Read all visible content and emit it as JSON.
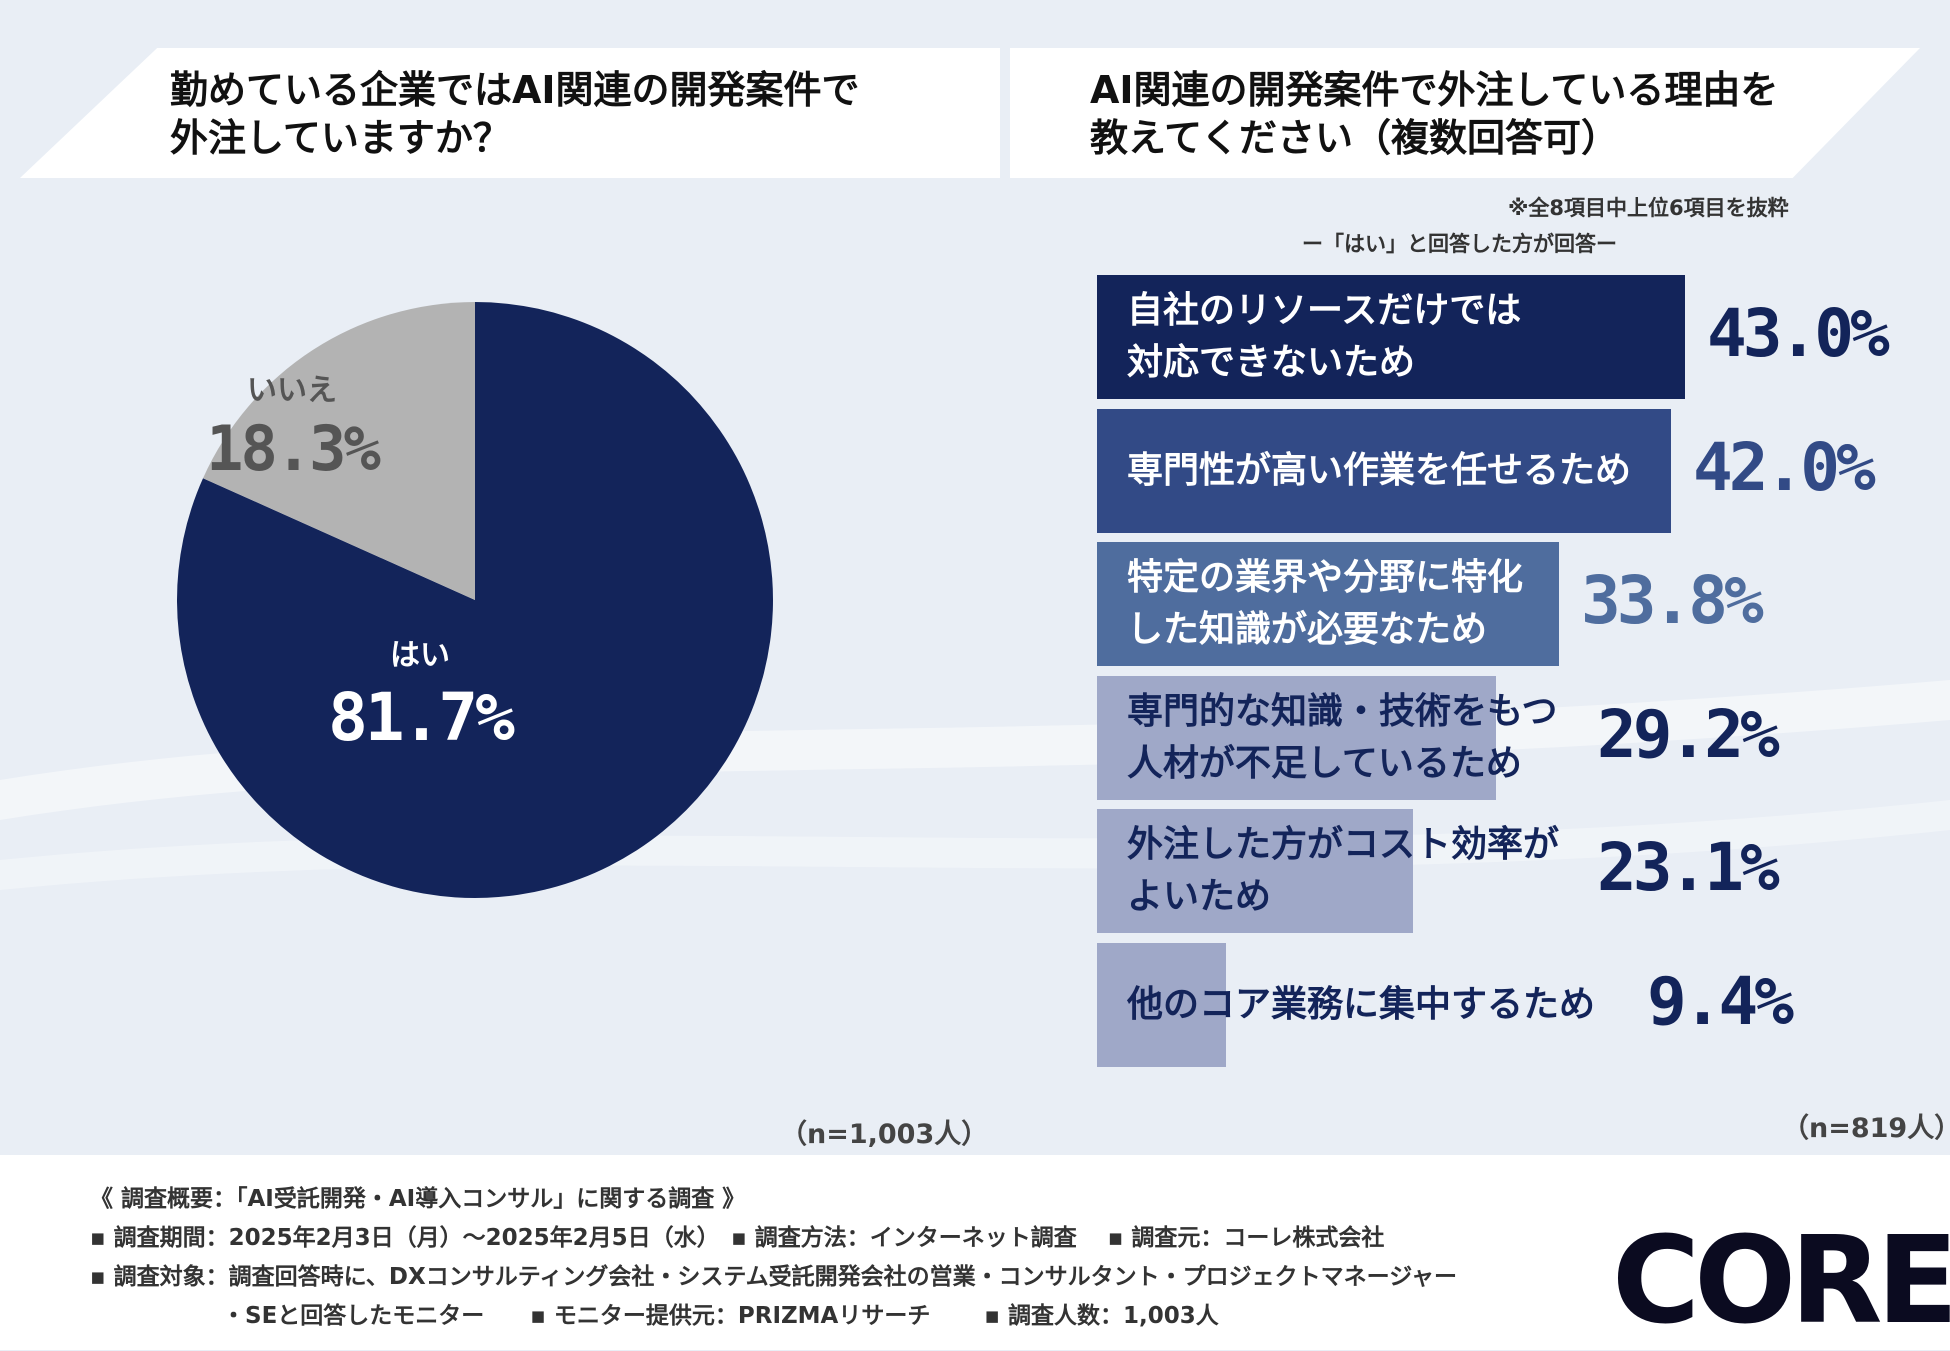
{
  "left_question": {
    "line1": "勤めている企業ではAI関連の開発案件で",
    "line2": "外注していますか？"
  },
  "right_question": {
    "line1": "AI関連の開発案件で外注している理由を",
    "line2": "教えてください（複数回答可）",
    "note": "※全8項目中上位6項目を抜粋",
    "subnote": "ー「はい」と回答した方が回答ー"
  },
  "chart_data": [
    {
      "type": "pie",
      "title": "勤めている企業ではAI関連の開発案件で外注していますか？",
      "slices": [
        {
          "label": "はい",
          "value": 81.7,
          "value_label": "81.7%",
          "color": "#13245a",
          "text_color": "#ffffff"
        },
        {
          "label": "いいえ",
          "value": 18.3,
          "value_label": "18.3%",
          "color": "#b3b3b3",
          "text_color": "#555555"
        }
      ],
      "n": "（n=1,003人）"
    },
    {
      "type": "bar",
      "orientation": "horizontal",
      "title": "AI関連の開発案件で外注している理由を教えてください（複数回答可）",
      "xlim": [
        0,
        43
      ],
      "bars": [
        {
          "line1": "自社のリソースだけでは",
          "line2": "対応できないため",
          "value": 43.0,
          "value_label": "43.0%",
          "color": "#13245a",
          "text_color": "#ffffff",
          "value_color": "#13245a"
        },
        {
          "line1": "専門性が高い作業を任せるため",
          "line2": "",
          "value": 42.0,
          "value_label": "42.0%",
          "color": "#324a86",
          "text_color": "#ffffff",
          "value_color": "#324a86"
        },
        {
          "line1": "特定の業界や分野に特化",
          "line2": "した知識が必要なため",
          "value": 33.8,
          "value_label": "33.8%",
          "color": "#4f6d9e",
          "text_color": "#ffffff",
          "value_color": "#4f6d9e"
        },
        {
          "line1": "専門的な知識・技術をもつ",
          "line2": "人材が不足しているため",
          "value": 29.2,
          "value_label": "29.2%",
          "color": "#9fa8c8",
          "text_color": "#13245a",
          "value_color": "#13245a"
        },
        {
          "line1": "外注した方がコスト効率が",
          "line2": "よいため",
          "value": 23.1,
          "value_label": "23.1%",
          "color": "#9fa8c8",
          "text_color": "#13245a",
          "value_color": "#13245a"
        },
        {
          "line1": "他のコア業務に集中するため",
          "line2": "",
          "value": 9.4,
          "value_label": "9.4%",
          "color": "#9fa8c8",
          "text_color": "#13245a",
          "value_color": "#13245a"
        }
      ],
      "n": "（n=819人）"
    }
  ],
  "footer": {
    "title": "《 調査概要：「AI受託開発・AI導入コンサル」に関する調査 》",
    "line2": "▪ 調査期間：2025年2月3日（月）～2025年2月5日（水）　▪ 調査方法：インターネット調査　 ▪ 調査元：コーレ株式会社",
    "line3": "▪ 調査対象：調査回答時に、DXコンサルティング会社・システム受託開発会社の営業・コンサルタント・プロジェクトマネージャー",
    "line4": "・SEと回答したモニター　　▪ モニター提供元：PRIZMAリサーチ　　 ▪ 調査人数：1,003人",
    "logo": "CORE"
  }
}
